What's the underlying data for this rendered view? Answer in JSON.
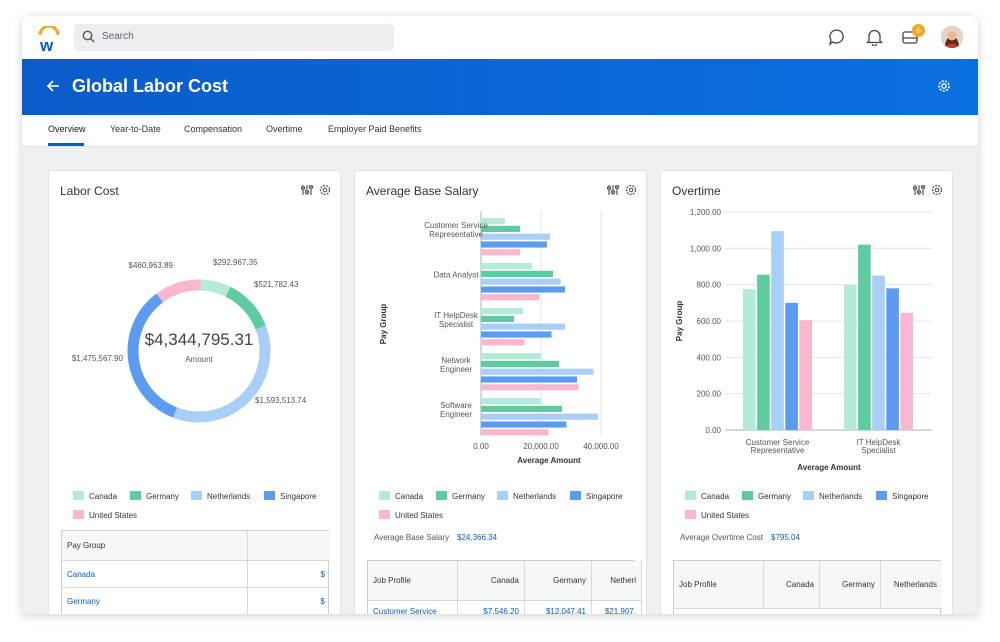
{
  "topbar": {
    "search_placeholder": "Search",
    "inbox_count": "6"
  },
  "header": {
    "title": "Global Labor Cost"
  },
  "tabs": [
    {
      "label": "Overview",
      "active": true
    },
    {
      "label": "Year-to-Date"
    },
    {
      "label": "Compensation"
    },
    {
      "label": "Overtime"
    },
    {
      "label": "Employer Paid Benefits"
    }
  ],
  "colors": {
    "brand": "#0b5cc9",
    "Canada": "#b4ebd8",
    "Germany": "#5ecc9e",
    "Netherlands": "#a9cff7",
    "Singapore": "#5b9cf0",
    "United States": "#f8b6cf"
  },
  "legend": [
    "Canada",
    "Germany",
    "Netherlands",
    "Singapore",
    "United States"
  ],
  "labor_cost": {
    "title": "Labor Cost",
    "total": "$4,344,795.31",
    "total_label": "Amount",
    "slice_labels": [
      "$292,967.35",
      "$521,782.43",
      "$1,593,513.74",
      "$1,475,567.90",
      "$460,963.89"
    ],
    "table": {
      "header": "Pay Group",
      "rows": [
        {
          "name": "Canada",
          "value": "$"
        },
        {
          "name": "Germany",
          "value": "$"
        }
      ]
    }
  },
  "avg_salary": {
    "title": "Average Base Salary",
    "stat_label": "Average Base Salary",
    "stat_value": "$24,366.34",
    "table": {
      "headers": [
        "Job Profile",
        "Canada",
        "Germany",
        "Netherl"
      ],
      "row": {
        "name": "Customer Service",
        "values": [
          "$7,546.20",
          "$12,047.41",
          "$21,907."
        ]
      }
    }
  },
  "overtime": {
    "title": "Overtime",
    "stat_label": "Average Overtime Cost",
    "stat_value": "$795.04",
    "table": {
      "headers": [
        "Job Profile",
        "Canada",
        "Germany",
        "Netherlands"
      ]
    }
  },
  "chart_data": [
    {
      "type": "pie",
      "title": "Labor Cost",
      "categories": [
        "Canada",
        "Germany",
        "Netherlands",
        "Singapore",
        "United States"
      ],
      "values": [
        292967.35,
        521782.43,
        1593513.74,
        1475567.9,
        460963.89
      ]
    },
    {
      "type": "bar",
      "title": "Average Base Salary",
      "orientation": "horizontal",
      "xlabel": "Average Amount",
      "ylabel": "Pay Group",
      "xlim": [
        0,
        45000
      ],
      "x_ticks": [
        "0.00",
        "20,000.00",
        "40,000.00"
      ],
      "categories": [
        "Customer Service Representative",
        "Data Analyst",
        "IT HelpDesk Specialist",
        "Network Engineer",
        "Software Engineer"
      ],
      "series": [
        {
          "name": "Canada",
          "values": [
            8000,
            17000,
            14000,
            20000,
            20000
          ]
        },
        {
          "name": "Germany",
          "values": [
            13000,
            24000,
            11000,
            26000,
            27000
          ]
        },
        {
          "name": "Netherlands",
          "values": [
            23000,
            26500,
            28000,
            37500,
            39000
          ]
        },
        {
          "name": "Singapore",
          "values": [
            22000,
            28000,
            23500,
            32000,
            28500
          ]
        },
        {
          "name": "United States",
          "values": [
            13000,
            19500,
            14500,
            32500,
            22500
          ]
        }
      ]
    },
    {
      "type": "bar",
      "title": "Overtime",
      "xlabel": "Average Amount",
      "ylabel": "Pay Group",
      "ylim": [
        0,
        1200
      ],
      "y_ticks": [
        "0.00",
        "200.00",
        "400.00",
        "600.00",
        "800.00",
        "1,000.00",
        "1,200.00"
      ],
      "categories": [
        "Customer Service Representative",
        "IT HelpDesk Specialist"
      ],
      "series": [
        {
          "name": "Canada",
          "values": [
            775,
            800
          ]
        },
        {
          "name": "Germany",
          "values": [
            855,
            1020
          ]
        },
        {
          "name": "Netherlands",
          "values": [
            1095,
            850
          ]
        },
        {
          "name": "Singapore",
          "values": [
            700,
            780
          ]
        },
        {
          "name": "United States",
          "values": [
            605,
            645
          ]
        }
      ]
    }
  ]
}
